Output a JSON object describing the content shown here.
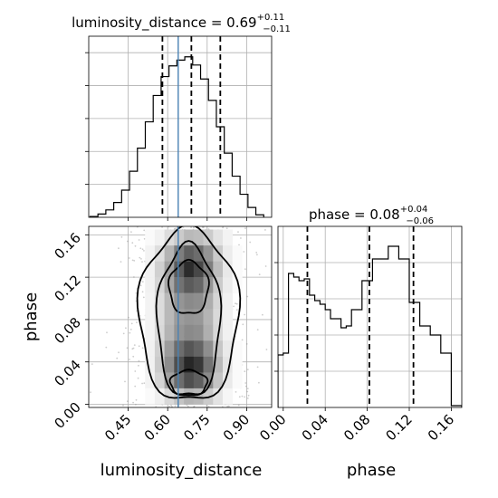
{
  "chart_data": [
    {
      "type": "histogram",
      "panel": "luminosity_distance",
      "title": {
        "main": "luminosity_distance = 0.69",
        "sup": "+0.11",
        "sub": "−0.11"
      },
      "x": [
        0.32,
        0.35,
        0.38,
        0.41,
        0.44,
        0.47,
        0.5,
        0.53,
        0.56,
        0.59,
        0.62,
        0.65,
        0.68,
        0.71,
        0.74,
        0.77,
        0.8,
        0.83,
        0.86,
        0.89,
        0.92,
        0.95
      ],
      "values": [
        0.005,
        0.02,
        0.045,
        0.09,
        0.165,
        0.28,
        0.42,
        0.58,
        0.74,
        0.855,
        0.92,
        0.955,
        0.975,
        0.925,
        0.84,
        0.71,
        0.55,
        0.39,
        0.25,
        0.14,
        0.06,
        0.015
      ],
      "bin_width": 0.03,
      "xlim": [
        0.3,
        0.995
      ],
      "ylim": [
        0,
        1.1
      ],
      "quantiles": [
        0.58,
        0.69,
        0.8
      ],
      "truth": 0.64,
      "grid": true
    },
    {
      "type": "histogram",
      "panel": "phase",
      "title": {
        "main": "phase = 0.08",
        "sup": "+0.04",
        "sub": "−0.06"
      },
      "x": [
        -0.0025,
        0.0025,
        0.0075,
        0.0125,
        0.0175,
        0.0225,
        0.0275,
        0.0325,
        0.0375,
        0.0425,
        0.0475,
        0.0525,
        0.0575,
        0.0625,
        0.0675,
        0.0725,
        0.0775,
        0.0825,
        0.0875,
        0.0925,
        0.0975,
        0.1025,
        0.1075,
        0.1125,
        0.1175,
        0.1225,
        0.1275,
        0.1325,
        0.1375,
        0.1425,
        0.1475,
        0.1525,
        0.1575,
        0.1625,
        0.1675
      ],
      "values": [
        0.29,
        0.3,
        0.74,
        0.72,
        0.7,
        0.71,
        0.62,
        0.59,
        0.57,
        0.54,
        0.49,
        0.49,
        0.44,
        0.45,
        0.54,
        0.54,
        0.7,
        0.7,
        0.82,
        0.82,
        0.82,
        0.89,
        0.89,
        0.82,
        0.82,
        0.58,
        0.58,
        0.45,
        0.45,
        0.4,
        0.4,
        0.3,
        0.3,
        0.01,
        0.01
      ],
      "bin_width": 0.005,
      "xlim": [
        -0.005,
        0.17
      ],
      "ylim": [
        0,
        1.0
      ],
      "quantiles": [
        0.023,
        0.082,
        0.124
      ],
      "grid": true
    },
    {
      "type": "heatmap",
      "panel": "luminosity_distance vs phase",
      "xlabel": "luminosity_distance",
      "ylabel": "phase",
      "xlim": [
        0.3,
        0.995
      ],
      "ylim": [
        -0.003,
        0.168
      ],
      "xticks": [
        0.45,
        0.6,
        0.75,
        0.9
      ],
      "yticks": [
        0.0,
        0.04,
        0.08,
        0.12,
        0.16
      ],
      "truth_x": 0.64,
      "mean": [
        0.68,
        0.085
      ],
      "sigma": [
        0.11,
        0.045
      ],
      "density_grid": [
        [
          0.0,
          0.0,
          0.02,
          0.06,
          0.15,
          0.22,
          0.3,
          0.28,
          0.22,
          0.12,
          0.05,
          0.01,
          0.0
        ],
        [
          0.0,
          0.01,
          0.05,
          0.14,
          0.32,
          0.55,
          0.68,
          0.62,
          0.45,
          0.22,
          0.08,
          0.02,
          0.0
        ],
        [
          0.0,
          0.01,
          0.06,
          0.2,
          0.4,
          0.7,
          0.9,
          0.78,
          0.55,
          0.28,
          0.1,
          0.02,
          0.0
        ],
        [
          0.0,
          0.01,
          0.06,
          0.18,
          0.38,
          0.6,
          0.7,
          0.65,
          0.45,
          0.22,
          0.08,
          0.02,
          0.0
        ],
        [
          0.0,
          0.01,
          0.05,
          0.15,
          0.3,
          0.45,
          0.5,
          0.48,
          0.35,
          0.18,
          0.06,
          0.01,
          0.0
        ],
        [
          0.0,
          0.01,
          0.05,
          0.15,
          0.3,
          0.42,
          0.45,
          0.44,
          0.32,
          0.16,
          0.06,
          0.01,
          0.0
        ],
        [
          0.0,
          0.01,
          0.05,
          0.16,
          0.32,
          0.45,
          0.5,
          0.48,
          0.34,
          0.17,
          0.06,
          0.01,
          0.0
        ],
        [
          0.0,
          0.01,
          0.06,
          0.2,
          0.42,
          0.62,
          0.72,
          0.66,
          0.48,
          0.24,
          0.09,
          0.02,
          0.0
        ],
        [
          0.0,
          0.01,
          0.06,
          0.22,
          0.48,
          0.75,
          0.92,
          0.85,
          0.6,
          0.3,
          0.11,
          0.02,
          0.0
        ],
        [
          0.0,
          0.01,
          0.05,
          0.18,
          0.4,
          0.62,
          0.75,
          0.68,
          0.5,
          0.25,
          0.09,
          0.02,
          0.0
        ],
        [
          0.0,
          0.0,
          0.02,
          0.07,
          0.16,
          0.25,
          0.32,
          0.3,
          0.22,
          0.12,
          0.04,
          0.01,
          0.0
        ]
      ],
      "contour_levels": [
        0.12,
        0.3,
        0.55
      ]
    }
  ],
  "axes": {
    "hist1_xticks": [
      0.45,
      0.6,
      0.75,
      0.9
    ],
    "hist2_xticks": [
      0.0,
      0.04,
      0.08,
      0.12,
      0.16
    ],
    "hist1_xtick_labels": [
      "0.45",
      "0.60",
      "0.75",
      "0.90"
    ],
    "hist2_xtick_labels": [
      "0.00",
      "0.04",
      "0.08",
      "0.12",
      "0.16"
    ],
    "yticks_labels": [
      "0.00",
      "0.04",
      "0.08",
      "0.12",
      "0.16"
    ],
    "xlabel_left": "luminosity_distance",
    "xlabel_right": "phase",
    "ylabel": "phase"
  },
  "colors": {
    "truth": "#4a82b4",
    "hist": "#000000",
    "grid": "#b0b0b0",
    "scatter": "#909090"
  }
}
